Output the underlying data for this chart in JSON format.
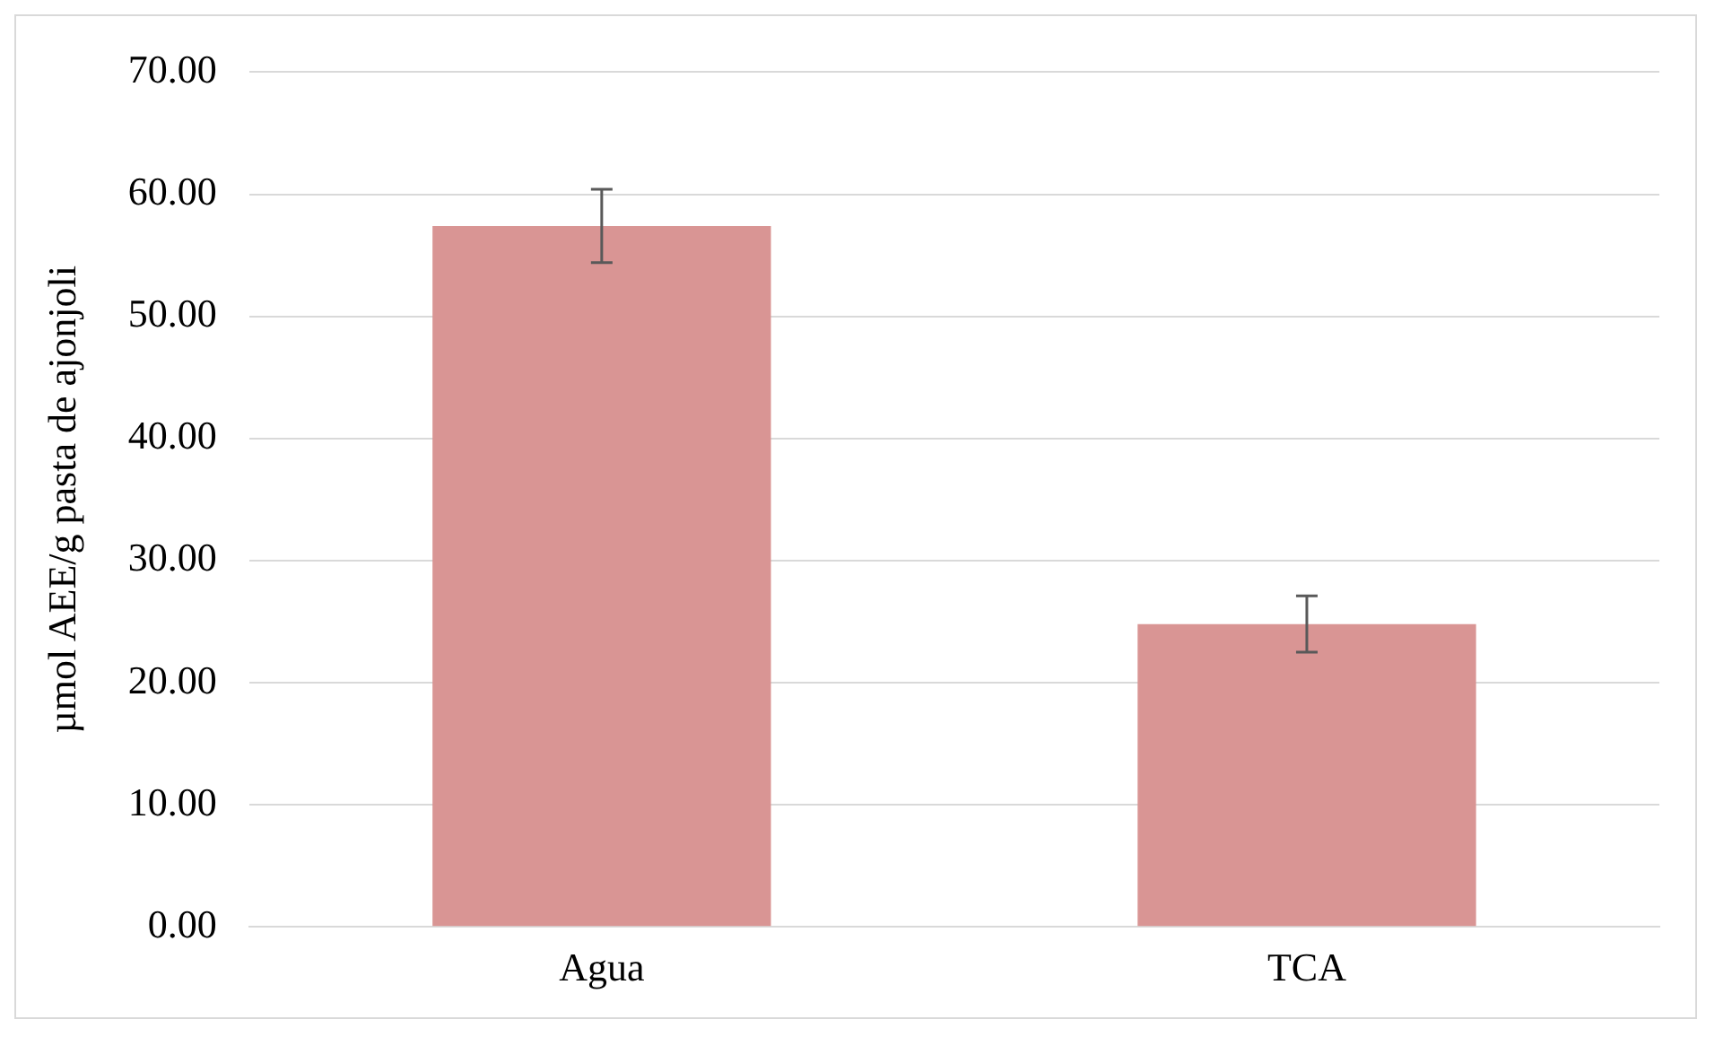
{
  "chart_data": {
    "type": "bar",
    "ylabel": "µmol AEE/g pasta de ajonjoli",
    "categories": [
      "Agua",
      "TCA"
    ],
    "values": [
      57.4,
      24.8
    ],
    "errors": [
      3.0,
      2.3
    ],
    "color": "#d99594",
    "ylim": [
      0,
      70
    ],
    "yticks": [
      {
        "value": 0,
        "label": "0.00"
      },
      {
        "value": 10,
        "label": "10.00"
      },
      {
        "value": 20,
        "label": "20.00"
      },
      {
        "value": 30,
        "label": "30.00"
      },
      {
        "value": 40,
        "label": "40.00"
      },
      {
        "value": 50,
        "label": "50.00"
      },
      {
        "value": 60,
        "label": "60.00"
      },
      {
        "value": 70,
        "label": "70.00"
      }
    ],
    "grid": "y",
    "legend": false
  }
}
